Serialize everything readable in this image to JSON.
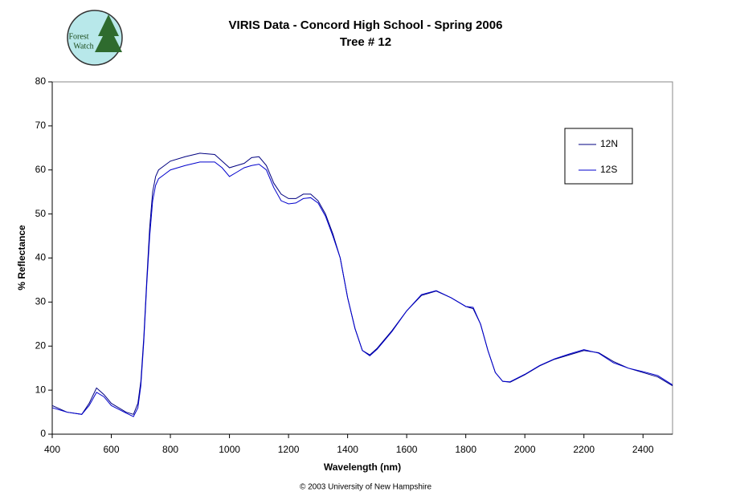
{
  "chart_data": {
    "type": "line",
    "title": "VIRIS Data -  Concord High School - Spring 2006",
    "subtitle": "Tree # 12",
    "logo": [
      "Forest",
      "Watch"
    ],
    "footer": "© 2003 University of New Hampshire",
    "xlabel": "Wavelength (nm)",
    "ylabel": "% Reflectance",
    "x": [
      400,
      450,
      500,
      525,
      550,
      575,
      600,
      650,
      675,
      690,
      700,
      710,
      720,
      730,
      740,
      750,
      760,
      780,
      800,
      850,
      900,
      950,
      975,
      1000,
      1025,
      1050,
      1075,
      1100,
      1125,
      1150,
      1175,
      1200,
      1225,
      1250,
      1275,
      1300,
      1325,
      1350,
      1375,
      1400,
      1425,
      1450,
      1475,
      1500,
      1550,
      1600,
      1650,
      1700,
      1750,
      1800,
      1825,
      1850,
      1875,
      1900,
      1925,
      1950,
      2000,
      2050,
      2100,
      2150,
      2200,
      2250,
      2300,
      2350,
      2400,
      2450,
      2500
    ],
    "series": [
      {
        "name": "12N",
        "color": "#000080",
        "values": [
          6.5,
          5,
          4.5,
          7,
          10.5,
          9,
          7,
          5,
          4.5,
          7,
          12,
          22,
          35,
          47,
          55,
          58.5,
          60,
          61,
          62,
          63,
          63.8,
          63.5,
          62,
          60.5,
          61,
          61.5,
          62.8,
          63,
          61,
          57,
          54.5,
          53.5,
          53.5,
          54.5,
          54.5,
          53,
          50,
          45.5,
          40,
          31,
          24,
          19,
          18,
          19.5,
          23.5,
          28,
          31.5,
          32.5,
          31,
          29,
          28.5,
          25,
          19,
          14,
          12,
          11.8,
          13.5,
          15.5,
          17,
          18,
          19,
          18.5,
          16.5,
          15,
          14,
          13,
          11
        ]
      },
      {
        "name": "12S",
        "color": "#0000cc",
        "values": [
          6,
          5,
          4.5,
          6.5,
          9.5,
          8.5,
          6.5,
          4.8,
          4,
          6,
          11,
          21,
          34,
          45,
          53,
          56.5,
          58,
          59,
          60,
          61,
          61.8,
          61.8,
          60.5,
          58.5,
          59.5,
          60.5,
          61,
          61.3,
          60,
          56,
          53,
          52.3,
          52.5,
          53.5,
          53.7,
          52.5,
          49.5,
          45,
          40,
          31,
          24,
          19,
          17.8,
          19.3,
          23.3,
          28,
          31.7,
          32.6,
          31,
          29,
          28.8,
          25,
          19,
          14,
          12,
          11.9,
          13.6,
          15.6,
          17.1,
          18.2,
          19.2,
          18.4,
          16.2,
          15,
          14.2,
          13.3,
          11.2
        ]
      }
    ],
    "xlim": [
      400,
      2500
    ],
    "xticks": [
      400,
      600,
      800,
      1000,
      1200,
      1400,
      1600,
      1800,
      2000,
      2200,
      2400
    ],
    "ylim": [
      0,
      80
    ],
    "yticks": [
      0,
      10,
      20,
      30,
      40,
      50,
      60,
      70,
      80
    ],
    "grid": false,
    "legend": "upper-right"
  }
}
